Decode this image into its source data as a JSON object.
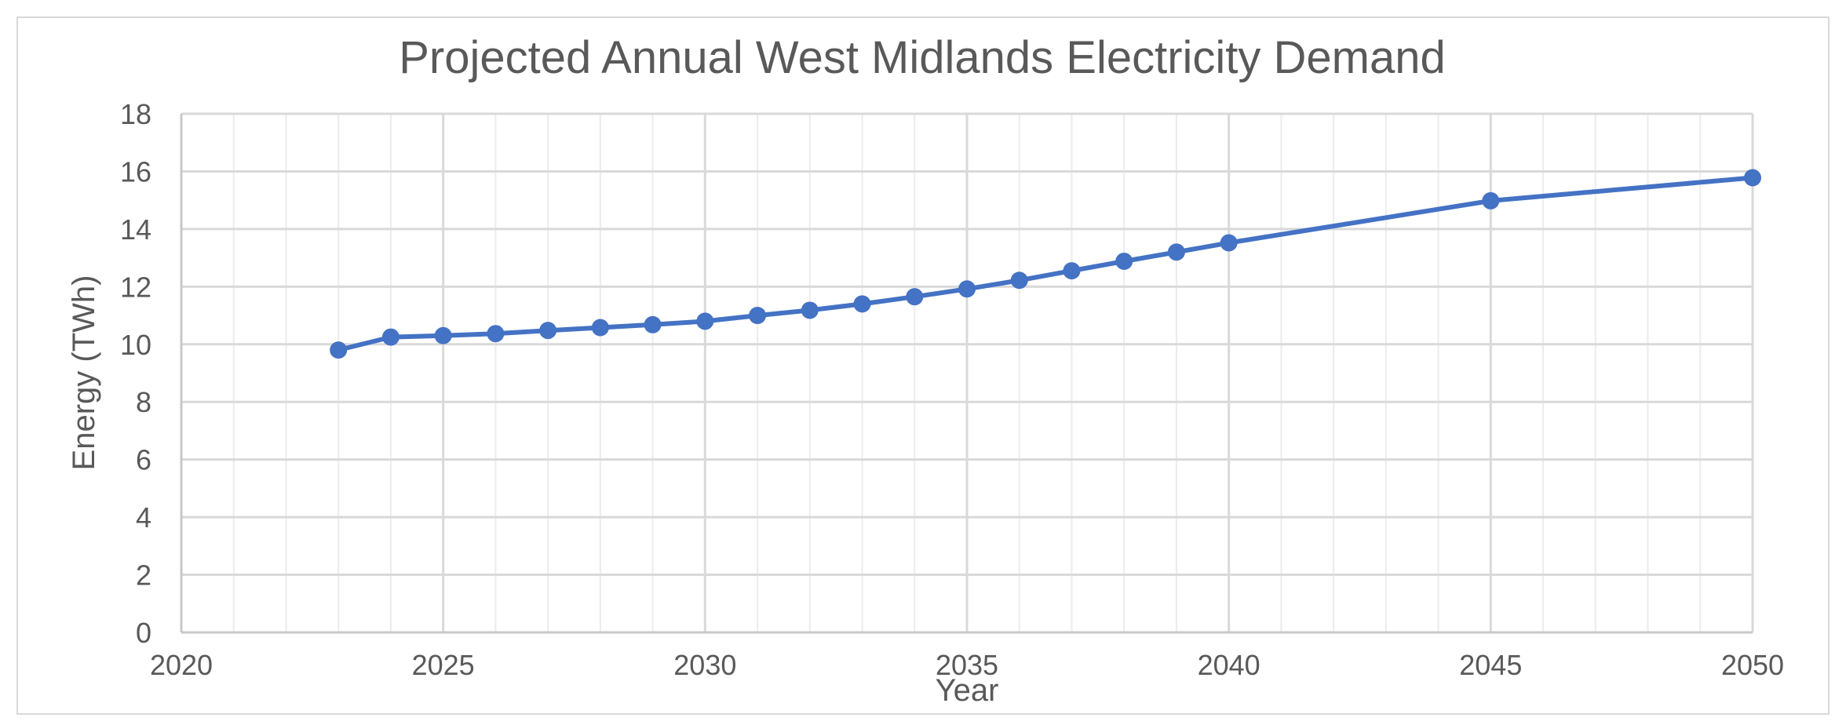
{
  "chart_data": {
    "type": "line",
    "title": "Projected Annual West Midlands Electricity Demand",
    "xlabel": "Year",
    "ylabel": "Energy (TWh)",
    "xlim": [
      2020,
      2050
    ],
    "ylim": [
      0,
      18
    ],
    "x_ticks": [
      "2020",
      "2025",
      "2030",
      "2035",
      "2040",
      "2045",
      "2050"
    ],
    "y_ticks": [
      "0",
      "2",
      "4",
      "6",
      "8",
      "10",
      "12",
      "14",
      "16",
      "18"
    ],
    "x_major_step": 5,
    "x_minor_step": 1,
    "y_step": 2,
    "grid": true,
    "legend": "none",
    "series": [
      {
        "color": "#4472c4",
        "x": [
          2023,
          2024,
          2025,
          2026,
          2027,
          2028,
          2029,
          2030,
          2031,
          2032,
          2033,
          2034,
          2035,
          2036,
          2037,
          2038,
          2039,
          2040,
          2045,
          2050
        ],
        "y": [
          9.8,
          10.25,
          10.3,
          10.37,
          10.48,
          10.58,
          10.68,
          10.8,
          11.0,
          11.18,
          11.4,
          11.65,
          11.92,
          12.22,
          12.55,
          12.88,
          13.2,
          13.52,
          14.98,
          15.78
        ]
      }
    ]
  }
}
